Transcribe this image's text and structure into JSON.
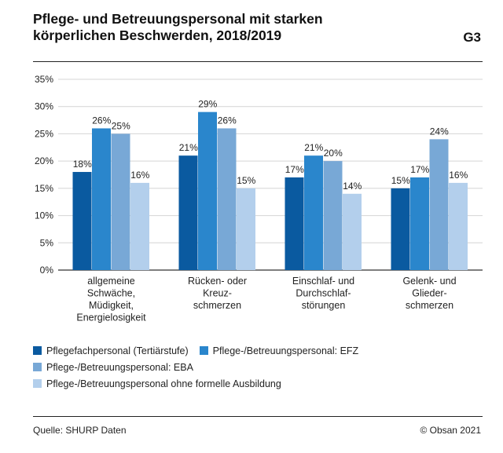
{
  "header": {
    "title": "Pflege- und Betreuungspersonal mit starken körperlichen Beschwerden, 2018/2019",
    "code": "G3"
  },
  "footer": {
    "source": "Quelle: SHURP Daten",
    "copyright": "© Obsan 2021"
  },
  "chart_data": {
    "type": "bar",
    "title": "Pflege- und Betreuungspersonal mit starken körperlichen Beschwerden, 2018/2019",
    "xlabel": "",
    "ylabel": "",
    "ylim": [
      0,
      35
    ],
    "yticks": [
      "0%",
      "5%",
      "10%",
      "15%",
      "20%",
      "25%",
      "30%",
      "35%"
    ],
    "ytick_values": [
      0,
      5,
      10,
      15,
      20,
      25,
      30,
      35
    ],
    "grid": true,
    "legend_position": "bottom",
    "categories": [
      [
        "allgemeine",
        "Schwäche,",
        "Müdigkeit,",
        "Energielosigkeit"
      ],
      [
        "Rücken- oder",
        "Kreuz-",
        "schmerzen"
      ],
      [
        "Einschlaf- und",
        "Durchschlaf-",
        "störungen"
      ],
      [
        "Gelenk- und",
        "Glieder-",
        "schmerzen"
      ]
    ],
    "series": [
      {
        "name": "Pflegefachpersonal (Tertiärstufe)",
        "color": "#0a5aa0",
        "values": [
          18,
          21,
          17,
          15
        ]
      },
      {
        "name": "Pflege-/Betreuungspersonal: EFZ",
        "color": "#2a86cc",
        "values": [
          26,
          29,
          21,
          17
        ]
      },
      {
        "name": "Pflege-/Betreuungspersonal: EBA",
        "color": "#78a8d6",
        "values": [
          25,
          26,
          20,
          24
        ]
      },
      {
        "name": "Pflege-/Betreuungspersonal ohne formelle Ausbildung",
        "color": "#b3cfec",
        "values": [
          16,
          15,
          14,
          16
        ]
      }
    ],
    "value_labels": [
      [
        "18%",
        "21%",
        "17%",
        "15%"
      ],
      [
        "26%",
        "29%",
        "21%",
        "17%"
      ],
      [
        "25%",
        "26%",
        "20%",
        "24%"
      ],
      [
        "16%",
        "15%",
        "14%",
        "16%"
      ]
    ]
  }
}
